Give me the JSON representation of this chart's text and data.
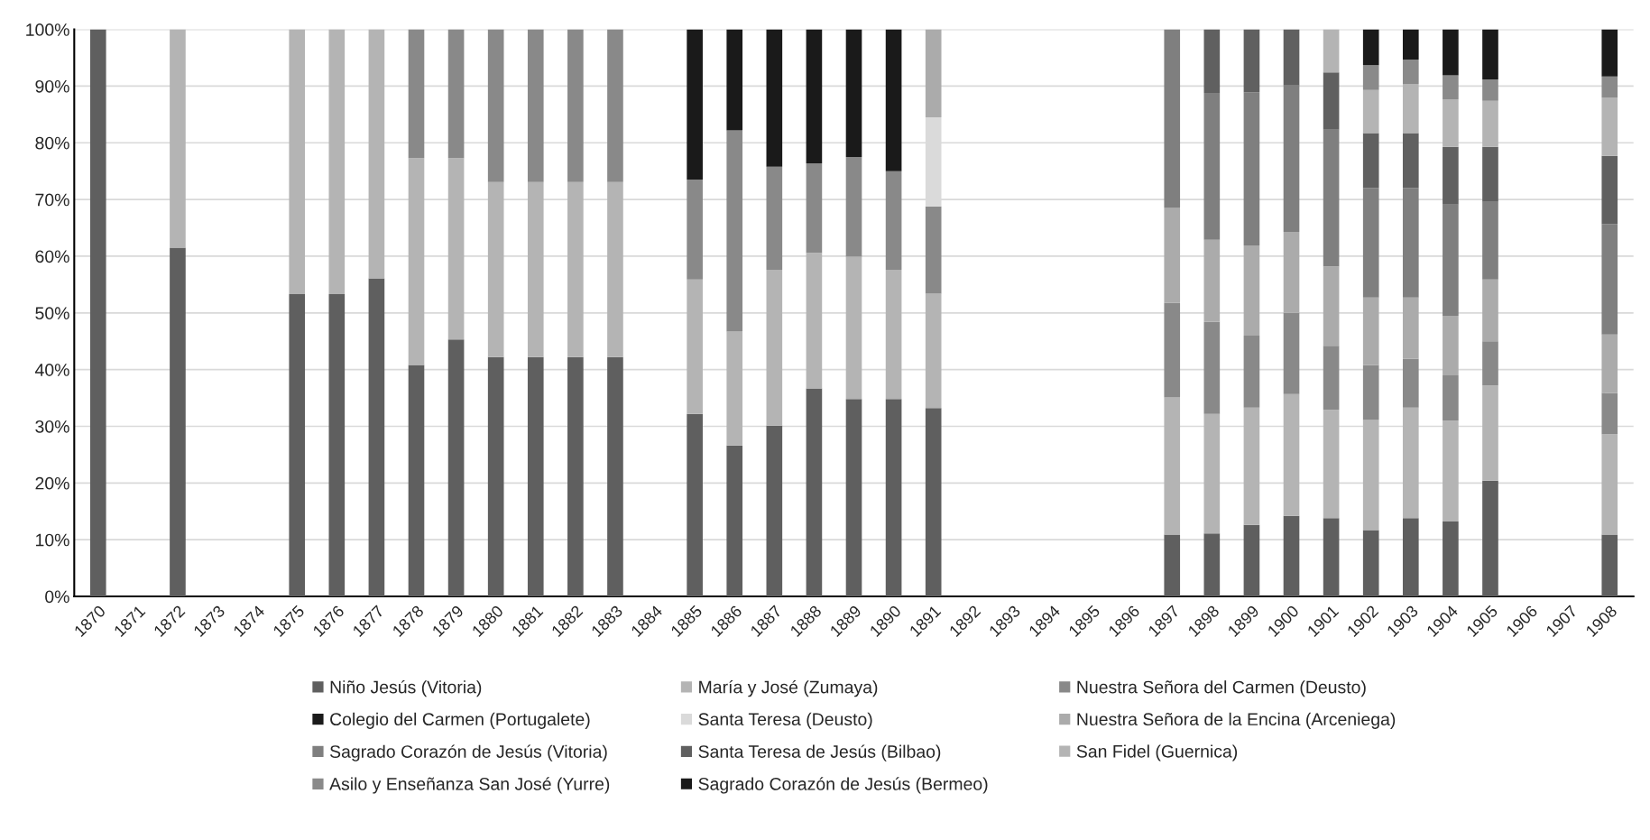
{
  "chart_data": {
    "type": "bar",
    "stacked": true,
    "categories": [
      "1870",
      "1871",
      "1872",
      "1873",
      "1874",
      "1875",
      "1876",
      "1877",
      "1878",
      "1879",
      "1880",
      "1881",
      "1882",
      "1883",
      "1884",
      "1885",
      "1886",
      "1887",
      "1888",
      "1889",
      "1890",
      "1891",
      "1892",
      "1893",
      "1894",
      "1895",
      "1896",
      "1897",
      "1898",
      "1899",
      "1900",
      "1901",
      "1902",
      "1903",
      "1904",
      "1905",
      "1906",
      "1907",
      "1908"
    ],
    "ylim": [
      0,
      100
    ],
    "yticks": [
      {
        "value": 0,
        "label": "0%"
      },
      {
        "value": 10,
        "label": "10%"
      },
      {
        "value": 20,
        "label": "20%"
      },
      {
        "value": 30,
        "label": "30%"
      },
      {
        "value": 40,
        "label": "40%"
      },
      {
        "value": 50,
        "label": "50%"
      },
      {
        "value": 60,
        "label": "60%"
      },
      {
        "value": 70,
        "label": "70%"
      },
      {
        "value": 80,
        "label": "80%"
      },
      {
        "value": 90,
        "label": "90%"
      },
      {
        "value": 100,
        "label": "100%"
      }
    ],
    "grid": "y",
    "legend": "bottom",
    "series": [
      {
        "name": "Niño Jesús (Vitoria)",
        "color": "#5f5f5f",
        "values": [
          100,
          null,
          61.5,
          null,
          null,
          53.3,
          53.3,
          56.1,
          40.8,
          45.3,
          42.2,
          42.2,
          42.2,
          42.2,
          null,
          32.2,
          26.6,
          30.1,
          36.7,
          34.8,
          34.8,
          33.2,
          null,
          null,
          null,
          null,
          null,
          10.9,
          11.1,
          12.6,
          14.2,
          13.8,
          11.7,
          13.8,
          13.2,
          20.4,
          null,
          null,
          10.9
        ]
      },
      {
        "name": "María y José (Zumaya)",
        "color": "#b4b4b4",
        "values": [
          null,
          null,
          38.5,
          null,
          null,
          46.7,
          46.7,
          43.9,
          36.5,
          32.0,
          30.9,
          30.9,
          30.9,
          30.9,
          null,
          23.7,
          20.1,
          27.5,
          23.9,
          25.1,
          22.8,
          20.2,
          null,
          null,
          null,
          null,
          null,
          24.2,
          21.1,
          20.7,
          21.5,
          19.1,
          19.4,
          19.5,
          17.8,
          16.8,
          null,
          null,
          17.7
        ]
      },
      {
        "name": "Nuestra Señora del Carmen (Deusto)",
        "color": "#898989",
        "values": [
          null,
          null,
          null,
          null,
          null,
          null,
          null,
          null,
          22.7,
          22.7,
          26.9,
          26.9,
          26.9,
          26.9,
          null,
          17.6,
          35.5,
          18.2,
          15.8,
          17.6,
          17.4,
          15.4,
          null,
          null,
          null,
          null,
          null,
          16.7,
          16.2,
          12.7,
          14.3,
          11.3,
          9.7,
          8.6,
          8.0,
          7.8,
          null,
          null,
          7.3
        ]
      },
      {
        "name": "Colegio del Carmen (Portugalete)",
        "color": "#1a1a1a",
        "values": [
          null,
          null,
          null,
          null,
          null,
          null,
          null,
          null,
          null,
          null,
          null,
          null,
          null,
          null,
          null,
          26.5,
          17.8,
          24.2,
          23.6,
          22.5,
          25.0,
          null,
          null,
          null,
          null,
          null,
          null,
          null,
          null,
          null,
          null,
          null,
          null,
          null,
          null,
          null,
          null,
          null,
          null
        ]
      },
      {
        "name": "Santa Teresa (Deusto)",
        "color": "#dadada",
        "values": [
          null,
          null,
          null,
          null,
          null,
          null,
          null,
          null,
          null,
          null,
          null,
          null,
          null,
          null,
          null,
          null,
          null,
          null,
          null,
          null,
          null,
          15.7,
          null,
          null,
          null,
          null,
          null,
          null,
          null,
          null,
          null,
          null,
          null,
          null,
          null,
          null,
          null,
          null,
          null
        ]
      },
      {
        "name": "Nuestra Señora de la Encina (Arceniega)",
        "color": "#ababab",
        "values": [
          null,
          null,
          null,
          null,
          null,
          null,
          null,
          null,
          null,
          null,
          null,
          null,
          null,
          null,
          null,
          null,
          null,
          null,
          null,
          null,
          null,
          15.5,
          null,
          null,
          null,
          null,
          null,
          16.7,
          14.5,
          15.9,
          14.3,
          14.0,
          11.9,
          10.8,
          10.5,
          10.9,
          null,
          null,
          10.3
        ]
      },
      {
        "name": "Sagrado Corazón de Jesús (Vitoria)",
        "color": "#7f7f7f",
        "values": [
          null,
          null,
          null,
          null,
          null,
          null,
          null,
          null,
          null,
          null,
          null,
          null,
          null,
          null,
          null,
          null,
          null,
          null,
          null,
          null,
          null,
          null,
          null,
          null,
          null,
          null,
          null,
          31.5,
          25.9,
          27.0,
          25.8,
          24.1,
          19.3,
          19.3,
          19.6,
          13.7,
          null,
          null,
          19.5
        ]
      },
      {
        "name": "Santa Teresa de Jesús (Bilbao)",
        "color": "#606060",
        "values": [
          null,
          null,
          null,
          null,
          null,
          null,
          null,
          null,
          null,
          null,
          null,
          null,
          null,
          null,
          null,
          null,
          null,
          null,
          null,
          null,
          null,
          null,
          null,
          null,
          null,
          null,
          null,
          null,
          11.2,
          11.1,
          9.9,
          10.1,
          9.7,
          9.7,
          10.2,
          9.7,
          null,
          null,
          12.0
        ]
      },
      {
        "name": "San Fidel (Guernica)",
        "color": "#b4b4b4",
        "values": [
          null,
          null,
          null,
          null,
          null,
          null,
          null,
          null,
          null,
          null,
          null,
          null,
          null,
          null,
          null,
          null,
          null,
          null,
          null,
          null,
          null,
          null,
          null,
          null,
          null,
          null,
          null,
          null,
          null,
          null,
          null,
          7.6,
          7.6,
          8.7,
          8.4,
          8.1,
          null,
          null,
          10.3
        ]
      },
      {
        "name": "Asilo y Enseñanza San José (Yurre)",
        "color": "#8a8a8a",
        "values": [
          null,
          null,
          null,
          null,
          null,
          null,
          null,
          null,
          null,
          null,
          null,
          null,
          null,
          null,
          null,
          null,
          null,
          null,
          null,
          null,
          null,
          null,
          null,
          null,
          null,
          null,
          null,
          null,
          null,
          null,
          null,
          null,
          4.4,
          4.3,
          4.2,
          3.8,
          null,
          null,
          3.7
        ]
      },
      {
        "name": "Sagrado Corazón de Jesús (Bermeo)",
        "color": "#1a1a1a",
        "values": [
          null,
          null,
          null,
          null,
          null,
          null,
          null,
          null,
          null,
          null,
          null,
          null,
          null,
          null,
          null,
          null,
          null,
          null,
          null,
          null,
          null,
          null,
          null,
          null,
          null,
          null,
          null,
          null,
          null,
          null,
          null,
          null,
          6.3,
          5.3,
          8.1,
          8.8,
          null,
          null,
          8.3
        ]
      }
    ]
  }
}
